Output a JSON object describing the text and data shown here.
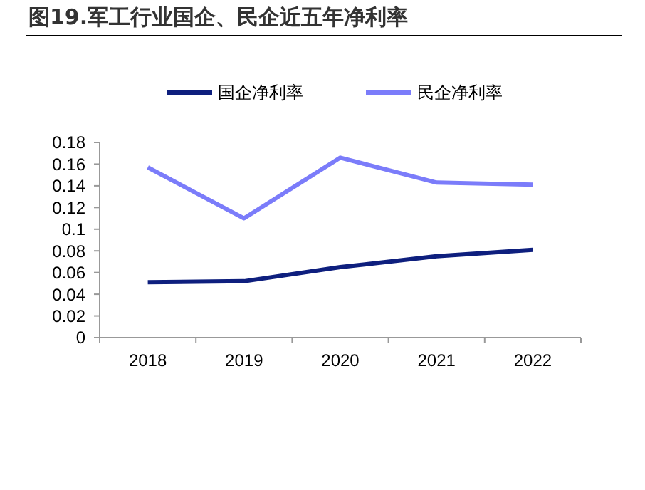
{
  "chart_data": {
    "type": "line",
    "title": "图19.军工行业国企、民企近五年净利率",
    "categories": [
      "2018",
      "2019",
      "2020",
      "2021",
      "2022"
    ],
    "series": [
      {
        "name": "国企净利率",
        "color": "#0e1f7e",
        "values": [
          0.051,
          0.052,
          0.065,
          0.075,
          0.081
        ]
      },
      {
        "name": "民企净利率",
        "color": "#7b7cfa",
        "values": [
          0.157,
          0.11,
          0.166,
          0.143,
          0.141
        ]
      }
    ],
    "ylim": [
      0,
      0.18
    ],
    "yticks": [
      0,
      0.02,
      0.04,
      0.06,
      0.08,
      0.1,
      0.12,
      0.14,
      0.16,
      0.18
    ],
    "grid": false,
    "legend": "top",
    "marker": "none",
    "line_style": "solid"
  }
}
